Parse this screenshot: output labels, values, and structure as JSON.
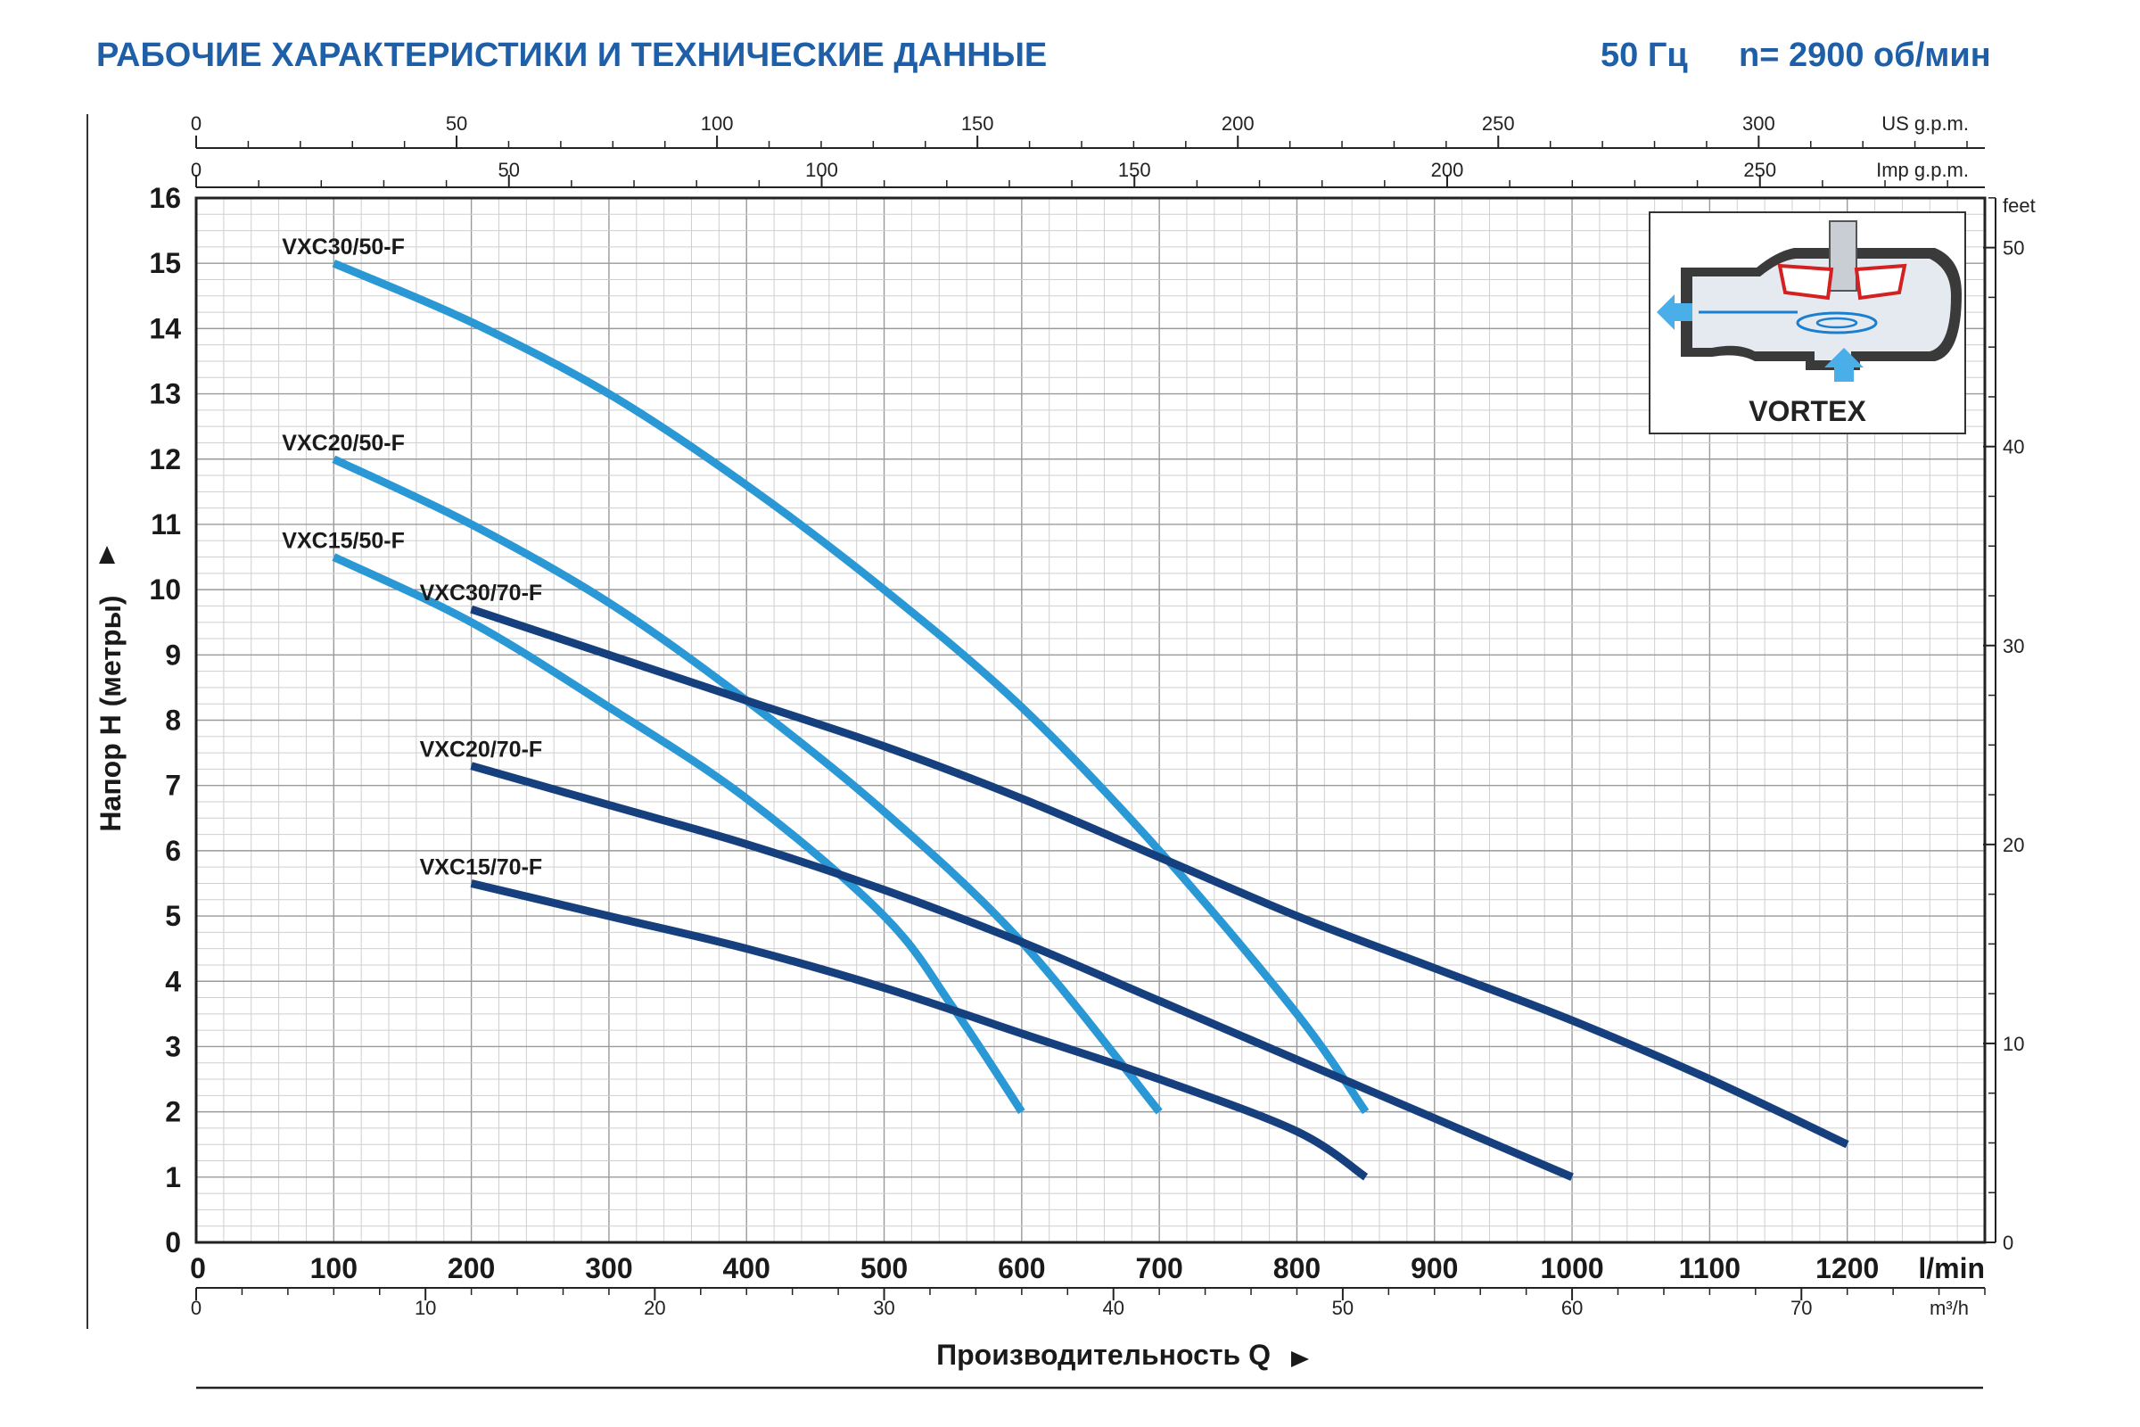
{
  "header": {
    "title": "РАБОЧИЕ ХАРАКТЕРИСТИКИ И ТЕХНИЧЕСКИЕ ДАННЫЕ",
    "freq": "50 Гц",
    "speed": "n= 2900 об/мин"
  },
  "diagram": {
    "label": "VORTEX"
  },
  "colors": {
    "series_50": "#2a98d4",
    "series_70": "#163f7e",
    "header": "#1f5fa8"
  },
  "chart_data": {
    "type": "line",
    "ylabel": "Напор H (метры)",
    "xlabel": "Производительность Q",
    "x_unit": "l/min",
    "xlim": [
      0,
      1300
    ],
    "ylim": [
      0,
      16
    ],
    "grid": true,
    "x_ticks": [
      0,
      100,
      200,
      300,
      400,
      500,
      600,
      700,
      800,
      900,
      1000,
      1100,
      1200
    ],
    "y_ticks": [
      0,
      1,
      2,
      3,
      4,
      5,
      6,
      7,
      8,
      9,
      10,
      11,
      12,
      13,
      14,
      15,
      16
    ],
    "secondary_axes": {
      "us_gpm": {
        "unit": "US g.p.m.",
        "ticks": [
          0,
          50,
          100,
          150,
          200,
          250,
          300
        ]
      },
      "imp_gpm": {
        "unit": "Imp g.p.m.",
        "ticks": [
          0,
          50,
          100,
          150,
          200,
          250
        ]
      },
      "m3h": {
        "unit": "m³/h",
        "ticks": [
          0,
          10,
          20,
          30,
          40,
          50,
          60,
          70
        ]
      },
      "feet": {
        "unit": "feet",
        "ticks": [
          0,
          10,
          20,
          30,
          40,
          50
        ]
      }
    },
    "series": [
      {
        "name": "VXC30/50-F",
        "group": "50",
        "x": [
          100,
          200,
          300,
          400,
          500,
          600,
          700,
          800,
          850
        ],
        "y": [
          15.0,
          14.1,
          13.0,
          11.6,
          10.0,
          8.2,
          6.0,
          3.5,
          2.0
        ]
      },
      {
        "name": "VXC20/50-F",
        "group": "50",
        "x": [
          100,
          200,
          300,
          400,
          500,
          600,
          700
        ],
        "y": [
          12.0,
          11.0,
          9.8,
          8.3,
          6.6,
          4.6,
          2.0
        ]
      },
      {
        "name": "VXC15/50-F",
        "group": "50",
        "x": [
          100,
          200,
          300,
          400,
          500,
          550,
          600
        ],
        "y": [
          10.5,
          9.5,
          8.2,
          6.8,
          5.0,
          3.6,
          2.0
        ]
      },
      {
        "name": "VXC30/70-F",
        "group": "70",
        "x": [
          200,
          300,
          400,
          500,
          600,
          700,
          800,
          900,
          1000,
          1100,
          1200
        ],
        "y": [
          9.7,
          9.0,
          8.3,
          7.6,
          6.8,
          5.9,
          5.0,
          4.2,
          3.4,
          2.5,
          1.5
        ]
      },
      {
        "name": "VXC20/70-F",
        "group": "70",
        "x": [
          200,
          300,
          400,
          500,
          600,
          700,
          800,
          900,
          1000
        ],
        "y": [
          7.3,
          6.7,
          6.1,
          5.4,
          4.6,
          3.7,
          2.8,
          1.9,
          1.0
        ]
      },
      {
        "name": "VXC15/70-F",
        "group": "70",
        "x": [
          200,
          300,
          400,
          500,
          600,
          700,
          800,
          850
        ],
        "y": [
          5.5,
          5.0,
          4.5,
          3.9,
          3.2,
          2.5,
          1.7,
          1.0
        ]
      }
    ]
  }
}
